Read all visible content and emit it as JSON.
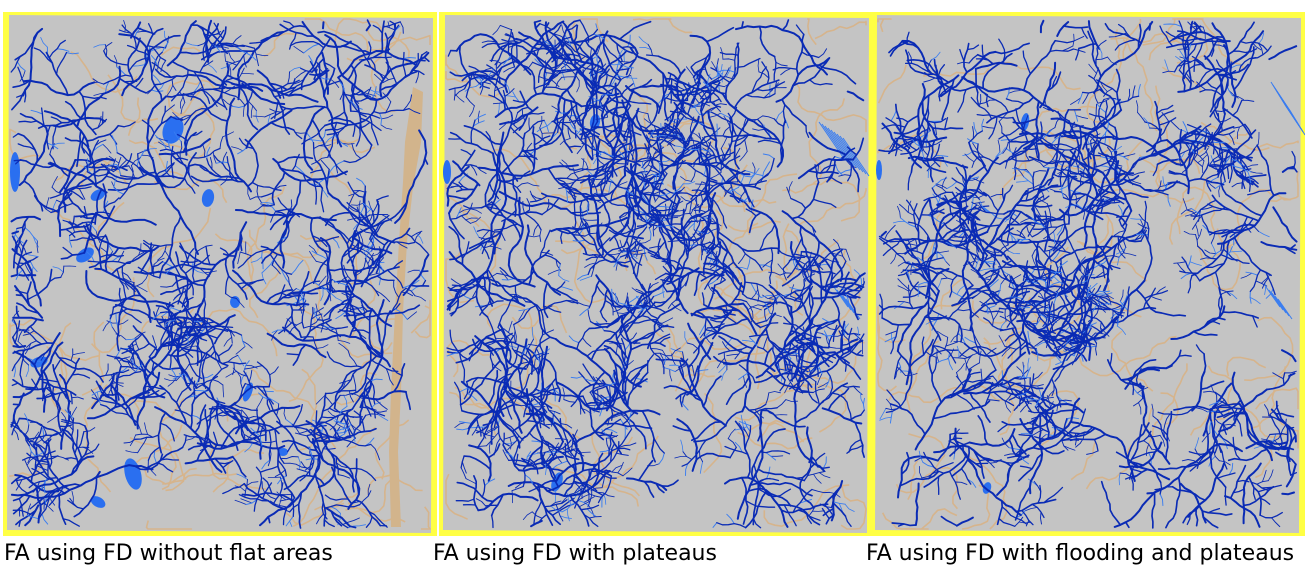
{
  "colors": {
    "frame": "#ffff44",
    "land": "#c4c4c4",
    "watershed": "#d6b48c",
    "flow_dark": "#0a2bb5",
    "flow_light": "#3a7df0",
    "flat_area": "#2a6ff0",
    "flat_tan": "#d2b48c"
  },
  "panels": [
    {
      "caption": "FA using FD without flat areas"
    },
    {
      "caption": "FA using FD with plateaus"
    },
    {
      "caption": "FA using FD with flooding and plateaus"
    }
  ]
}
